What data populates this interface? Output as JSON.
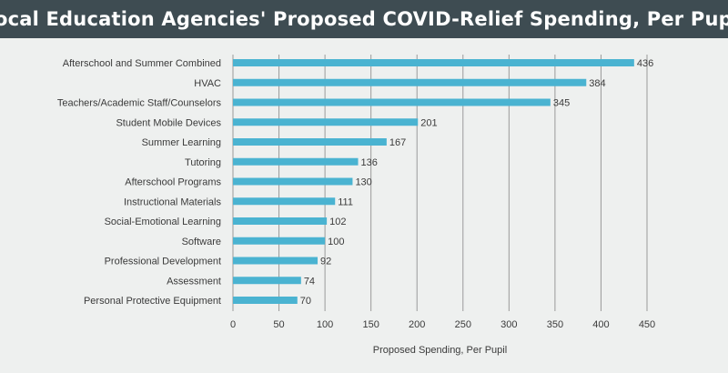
{
  "chart_data": {
    "type": "bar",
    "orientation": "horizontal",
    "title": "Local Education Agencies' Proposed COVID-Relief Spending, Per Pupil",
    "xlabel": "Proposed Spending, Per Pupil",
    "ylabel": "",
    "xlim": [
      0,
      450
    ],
    "x_ticks": [
      "0",
      "50",
      "100",
      "150",
      "200",
      "250",
      "300",
      "350",
      "400",
      "450"
    ],
    "grid": "vertical",
    "legend": "none",
    "bar_color": "#4ab3d1",
    "categories": [
      "Afterschool and Summer Combined",
      "HVAC",
      "Teachers/Academic Staff/Counselors",
      "Student Mobile Devices",
      "Summer Learning",
      "Tutoring",
      "Afterschool Programs",
      "Instructional Materials",
      "Social-Emotional Learning",
      "Software",
      "Professional Development",
      "Assessment",
      "Personal Protective Equipment"
    ],
    "values": [
      436,
      384,
      345,
      201,
      167,
      136,
      130,
      111,
      102,
      100,
      92,
      74,
      70
    ]
  },
  "colors": {
    "header_bg": "#3e4c52",
    "page_bg": "#eef0ef",
    "gridline": "#9a9a9a"
  }
}
